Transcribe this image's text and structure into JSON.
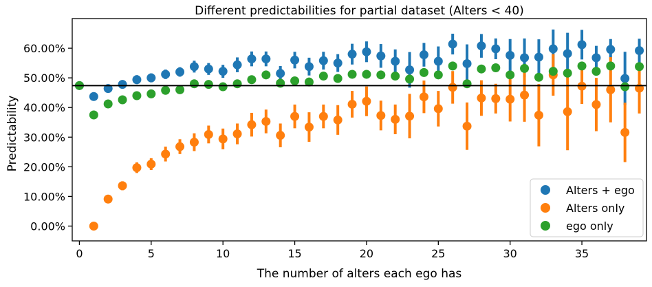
{
  "chart_data": {
    "type": "scatter",
    "title": "Different predictabilities for partial dataset (Alters < 40)",
    "xlabel": "The number of alters each ego has",
    "ylabel": "Predictability",
    "xlim": [
      -0.5,
      39.5
    ],
    "ylim": [
      -0.05,
      0.7
    ],
    "x_ticks": [
      0,
      5,
      10,
      15,
      20,
      25,
      30,
      35
    ],
    "x_tick_labels": [
      "0",
      "5",
      "10",
      "15",
      "20",
      "25",
      "30",
      "35"
    ],
    "y_ticks": [
      0,
      0.1,
      0.2,
      0.3,
      0.4,
      0.5,
      0.6
    ],
    "y_tick_labels": [
      "0.00%",
      "10.00%",
      "20.00%",
      "30.00%",
      "40.00%",
      "50.00%",
      "60.00%"
    ],
    "hline": 0.474,
    "grid": false,
    "legend_position": "bottom-right",
    "x": [
      0,
      1,
      2,
      3,
      4,
      5,
      6,
      7,
      8,
      9,
      10,
      11,
      12,
      13,
      14,
      15,
      16,
      17,
      18,
      19,
      20,
      21,
      22,
      23,
      24,
      25,
      26,
      27,
      28,
      29,
      30,
      31,
      32,
      33,
      34,
      35,
      36,
      37,
      38,
      39
    ],
    "series": [
      {
        "name": "Alters + ego",
        "color": "#1f77b4",
        "values": [
          0.474,
          0.437,
          0.464,
          0.478,
          0.494,
          0.5,
          0.512,
          0.52,
          0.538,
          0.53,
          0.522,
          0.544,
          0.564,
          0.564,
          0.515,
          0.56,
          0.538,
          0.558,
          0.55,
          0.58,
          0.588,
          0.574,
          0.556,
          0.527,
          0.578,
          0.556,
          0.614,
          0.548,
          0.608,
          0.598,
          0.576,
          0.568,
          0.57,
          0.598,
          0.582,
          0.612,
          0.568,
          0.596,
          0.498,
          0.592
        ],
        "errors": [
          0.012,
          0.01,
          0.01,
          0.01,
          0.015,
          0.015,
          0.016,
          0.016,
          0.02,
          0.02,
          0.022,
          0.025,
          0.025,
          0.025,
          0.025,
          0.028,
          0.03,
          0.03,
          0.03,
          0.035,
          0.035,
          0.04,
          0.04,
          0.06,
          0.04,
          0.05,
          0.035,
          0.065,
          0.04,
          0.035,
          0.055,
          0.065,
          0.06,
          0.065,
          0.07,
          0.05,
          0.04,
          0.035,
          0.09,
          0.04
        ]
      },
      {
        "name": "Alters only",
        "color": "#ff7f0e",
        "values": [
          null,
          0.0,
          0.091,
          0.136,
          0.197,
          0.209,
          0.243,
          0.268,
          0.283,
          0.309,
          0.294,
          0.311,
          0.342,
          0.353,
          0.306,
          0.37,
          0.334,
          0.37,
          0.358,
          0.411,
          0.421,
          0.373,
          0.36,
          0.371,
          0.436,
          0.396,
          0.468,
          0.337,
          0.432,
          0.43,
          0.428,
          0.442,
          0.374,
          0.51,
          0.386,
          0.472,
          0.41,
          0.46,
          0.316,
          0.465
        ],
        "errors": [
          null,
          0.01,
          0.01,
          0.015,
          0.018,
          0.02,
          0.025,
          0.025,
          0.03,
          0.03,
          0.035,
          0.035,
          0.04,
          0.04,
          0.04,
          0.04,
          0.05,
          0.04,
          0.05,
          0.045,
          0.05,
          0.05,
          0.05,
          0.075,
          0.055,
          0.06,
          0.055,
          0.08,
          0.06,
          0.05,
          0.075,
          0.09,
          0.105,
          0.07,
          0.13,
          0.06,
          0.09,
          0.11,
          0.1,
          0.085
        ]
      },
      {
        "name": "ego only",
        "color": "#2ca02c",
        "values": [
          0.474,
          0.375,
          0.412,
          0.426,
          0.44,
          0.446,
          0.458,
          0.46,
          0.48,
          0.478,
          0.47,
          0.48,
          0.494,
          0.51,
          0.482,
          0.49,
          0.486,
          0.506,
          0.498,
          0.512,
          0.512,
          0.51,
          0.506,
          0.496,
          0.518,
          0.51,
          0.54,
          0.48,
          0.53,
          0.534,
          0.51,
          0.532,
          0.502,
          0.522,
          0.516,
          0.54,
          0.522,
          0.54,
          0.47,
          0.538
        ]
      }
    ]
  }
}
